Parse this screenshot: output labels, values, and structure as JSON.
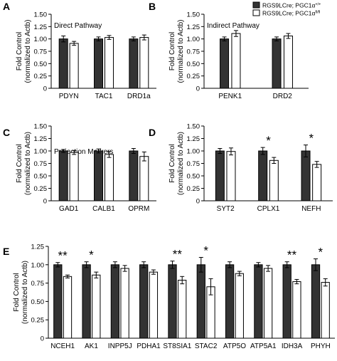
{
  "legend": {
    "items": [
      {
        "label": "RGS9LCre; PGC1α",
        "sup": "+/+",
        "fill": "#333333"
      },
      {
        "label": "RGS9LCre; PGC1α",
        "sup": "fl/fl",
        "fill": "#ffffff"
      }
    ]
  },
  "colors": {
    "control": "#333333",
    "knockout": "#ffffff",
    "stroke": "#000000"
  },
  "chart_data": [
    {
      "panel": "A",
      "type": "bar",
      "title": "Direct Pathway",
      "ylabel": "Fold Control\n(normalized to Actb)",
      "ylim": [
        0,
        1.5
      ],
      "yticks": [
        0,
        0.25,
        0.5,
        0.75,
        1.0,
        1.25,
        1.5
      ],
      "categories": [
        "PDYN",
        "TAC1",
        "DRD1a"
      ],
      "series": [
        {
          "values": [
            1.0,
            1.0,
            1.0
          ],
          "errors": [
            0.06,
            0.04,
            0.04
          ]
        },
        {
          "values": [
            0.91,
            1.03,
            1.03
          ],
          "errors": [
            0.04,
            0.04,
            0.05
          ]
        }
      ],
      "significance": [
        "",
        "",
        ""
      ]
    },
    {
      "panel": "B",
      "type": "bar",
      "title": "Indirect Pathway",
      "ylabel": "Fold Control\n(normalized to Actb)",
      "ylim": [
        0,
        1.5
      ],
      "yticks": [
        0,
        0.25,
        0.5,
        0.75,
        1.0,
        1.25,
        1.5
      ],
      "categories": [
        "PENK1",
        "DRD2"
      ],
      "series": [
        {
          "values": [
            1.0,
            1.0
          ],
          "errors": [
            0.04,
            0.04
          ]
        },
        {
          "values": [
            1.11,
            1.06
          ],
          "errors": [
            0.06,
            0.05
          ]
        }
      ],
      "significance": [
        "",
        ""
      ]
    },
    {
      "panel": "C",
      "type": "bar",
      "title": "Projection Markers",
      "ylabel": "Fold Control\n(normalized to Actb)",
      "ylim": [
        0,
        1.5
      ],
      "yticks": [
        0,
        0.25,
        0.5,
        0.75,
        1.0,
        1.25,
        1.5
      ],
      "categories": [
        "GAD1",
        "CALB1",
        "OPRM"
      ],
      "series": [
        {
          "values": [
            1.0,
            1.0,
            1.0
          ],
          "errors": [
            0.03,
            0.04,
            0.05
          ]
        },
        {
          "values": [
            0.97,
            0.93,
            0.89
          ],
          "errors": [
            0.04,
            0.06,
            0.09
          ]
        }
      ],
      "significance": [
        "",
        "",
        ""
      ]
    },
    {
      "panel": "D",
      "type": "bar",
      "title": "",
      "ylabel": "Fold Control\n(normalized to Actb)",
      "ylim": [
        0,
        1.5
      ],
      "yticks": [
        0,
        0.25,
        0.5,
        0.75,
        1.0,
        1.25,
        1.5
      ],
      "categories": [
        "SYT2",
        "CPLX1",
        "NEFH"
      ],
      "series": [
        {
          "values": [
            1.0,
            1.0,
            1.0
          ],
          "errors": [
            0.05,
            0.07,
            0.12
          ]
        },
        {
          "values": [
            0.99,
            0.81,
            0.73
          ],
          "errors": [
            0.07,
            0.06,
            0.06
          ]
        }
      ],
      "significance": [
        "",
        "*",
        "*"
      ]
    },
    {
      "panel": "E",
      "type": "bar",
      "title": "",
      "ylabel": "Fold Control\n(normalized to Actb)",
      "ylim": [
        0,
        1.25
      ],
      "yticks": [
        0,
        0.25,
        0.5,
        0.75,
        1.0,
        1.25
      ],
      "categories": [
        "NCEH1",
        "AK1",
        "INPP5J",
        "PDHA1",
        "ST8SIA1",
        "STAC2",
        "ATP5O",
        "ATP5A1",
        "IDH3A",
        "PHYH"
      ],
      "series": [
        {
          "values": [
            1.0,
            1.0,
            1.0,
            1.0,
            1.0,
            1.0,
            1.0,
            1.0,
            1.0,
            1.0
          ],
          "errors": [
            0.03,
            0.04,
            0.04,
            0.04,
            0.05,
            0.1,
            0.04,
            0.03,
            0.04,
            0.08
          ]
        },
        {
          "values": [
            0.84,
            0.86,
            0.95,
            0.9,
            0.79,
            0.7,
            0.88,
            0.95,
            0.77,
            0.76
          ],
          "errors": [
            0.02,
            0.04,
            0.04,
            0.03,
            0.05,
            0.11,
            0.03,
            0.04,
            0.03,
            0.05
          ]
        }
      ],
      "significance": [
        "**",
        "*",
        "",
        "",
        "**",
        "*",
        "",
        "",
        "**",
        "*"
      ]
    }
  ]
}
